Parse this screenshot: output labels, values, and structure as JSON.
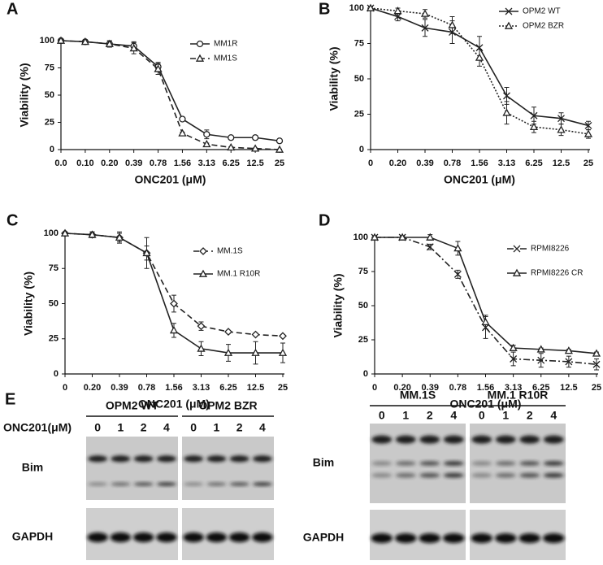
{
  "chart_data": [
    {
      "type": "line",
      "panel_label": "A",
      "x_label": "ONC201 (μM)",
      "y_label": "Viability (%)",
      "categories": [
        "0.0",
        "0.10",
        "0.20",
        "0.39",
        "0.78",
        "1.56",
        "3.13",
        "6.25",
        "12.5",
        "25"
      ],
      "ylim": [
        0,
        100
      ],
      "yticks": [
        0,
        25,
        50,
        75,
        100
      ],
      "legend": "upper right",
      "series": [
        {
          "name": "MM1R",
          "color": "#222222",
          "dash": "solid",
          "marker": "circle",
          "values": [
            100,
            99,
            97,
            95,
            76,
            28,
            14,
            11,
            11,
            8
          ],
          "errors": [
            1,
            1,
            3,
            4,
            4,
            1,
            4,
            1,
            2,
            1
          ]
        },
        {
          "name": "MM1S",
          "color": "#222222",
          "dash": "dashed",
          "marker": "triangle",
          "values": [
            100,
            99,
            97,
            93,
            74,
            15,
            5,
            2,
            1,
            0
          ],
          "errors": [
            1,
            1,
            3,
            5,
            5,
            1,
            1,
            0.5,
            0.5,
            0.5
          ]
        }
      ]
    },
    {
      "type": "line",
      "panel_label": "B",
      "x_label": "ONC201 (μM)",
      "y_label": "Viability (%)",
      "categories": [
        "0",
        "0.20",
        "0.39",
        "0.78",
        "1.56",
        "3.13",
        "6.25",
        "12.5",
        "25"
      ],
      "ylim": [
        0,
        100
      ],
      "yticks": [
        0,
        25,
        50,
        75,
        100
      ],
      "legend": "upper right",
      "series": [
        {
          "name": "OPM2 WT",
          "color": "#222222",
          "dash": "solid",
          "marker": "x",
          "values": [
            100,
            94,
            86,
            83,
            72,
            38,
            24,
            22,
            17
          ],
          "errors": [
            1,
            3,
            6,
            8,
            8,
            6,
            6,
            4,
            3
          ]
        },
        {
          "name": "OPM2 BZR",
          "color": "#222222",
          "dash": "dotted",
          "marker": "triangle",
          "values": [
            100,
            98,
            96,
            88,
            65,
            26,
            16,
            14,
            11
          ],
          "errors": [
            1,
            2,
            3,
            6,
            6,
            8,
            4,
            4,
            3
          ]
        }
      ]
    },
    {
      "type": "line",
      "panel_label": "C",
      "x_label": "ONC201 (μM)",
      "y_label": "Viability (%)",
      "categories": [
        "0",
        "0.20",
        "0.39",
        "0.78",
        "1.56",
        "3.13",
        "6.25",
        "12.5",
        "25"
      ],
      "ylim": [
        0,
        100
      ],
      "yticks": [
        0,
        25,
        50,
        75,
        100
      ],
      "legend": "center right",
      "series": [
        {
          "name": "MM.1S",
          "color": "#222222",
          "dash": "dashed",
          "marker": "diamond",
          "values": [
            100,
            99,
            97,
            86,
            50,
            34,
            30,
            28,
            27
          ],
          "errors": [
            1,
            2,
            3,
            5,
            6,
            3,
            1,
            1,
            1
          ]
        },
        {
          "name": "MM.1 R10R",
          "color": "#222222",
          "dash": "solid",
          "marker": "triangle",
          "values": [
            100,
            99,
            97,
            86,
            31,
            18,
            15,
            15,
            15
          ],
          "errors": [
            1,
            2,
            4,
            11,
            5,
            5,
            6,
            8,
            7
          ]
        }
      ]
    },
    {
      "type": "line",
      "panel_label": "D",
      "x_label": "ONC201 (μM)",
      "y_label": "Viability (%)",
      "categories": [
        "0",
        "0.20",
        "0.39",
        "0.78",
        "1.56",
        "3.13",
        "6.25",
        "12.5",
        "25"
      ],
      "ylim": [
        0,
        100
      ],
      "yticks": [
        0,
        25,
        50,
        75,
        100
      ],
      "legend": "upper right",
      "series": [
        {
          "name": "RPMI8226",
          "color": "#222222",
          "dash": "dashdot",
          "marker": "x",
          "values": [
            100,
            100,
            93,
            73,
            34,
            11,
            10,
            9,
            7
          ],
          "errors": [
            1,
            1,
            2,
            3,
            8,
            5,
            5,
            4,
            4
          ]
        },
        {
          "name": "RPMI8226 CR",
          "color": "#222222",
          "dash": "solid",
          "marker": "triangle",
          "values": [
            100,
            100,
            100,
            92,
            38,
            19,
            18,
            17,
            15
          ],
          "errors": [
            1,
            1,
            2,
            5,
            5,
            2,
            1,
            1,
            1
          ]
        }
      ]
    }
  ],
  "blots": {
    "panel_label": "E",
    "dose_label": "ONC201(μM)",
    "left": {
      "groups": [
        {
          "name": "OPM2 WT",
          "lanes": [
            0,
            1,
            2,
            4
          ]
        },
        {
          "name": "OPM2 BZR",
          "lanes": [
            0,
            1,
            2,
            4
          ]
        }
      ],
      "rows": [
        "Bim",
        "GAPDH"
      ]
    },
    "right": {
      "groups": [
        {
          "name": "MM.1S",
          "lanes": [
            0,
            1,
            2,
            4
          ]
        },
        {
          "name": "MM.1 R10R",
          "lanes": [
            0,
            1,
            2,
            4
          ]
        }
      ],
      "rows": [
        "Bim",
        "GAPDH"
      ]
    }
  }
}
